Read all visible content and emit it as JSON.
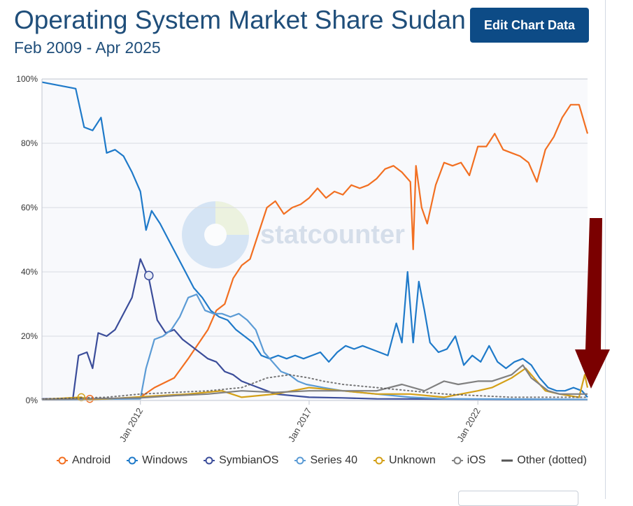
{
  "header": {
    "title": "Operating System Market Share Sudan",
    "subtitle": "Feb 2009 - Apr 2025",
    "edit_button_label": "Edit Chart Data"
  },
  "watermark": {
    "text": "statcounter"
  },
  "chart_data": {
    "type": "line",
    "title": "Operating System Market Share Sudan",
    "subtitle": "Feb 2009 - Apr 2025",
    "x_range": [
      "2009-02",
      "2025-04"
    ],
    "ylim": [
      0,
      100
    ],
    "y_ticks": [
      "0%",
      "20%",
      "40%",
      "60%",
      "80%",
      "100%"
    ],
    "x_ticks": [
      "Jan 2012",
      "Jan 2017",
      "Jan 2022"
    ],
    "grid": true,
    "legend_position": "bottom",
    "series": [
      {
        "name": "Android",
        "color": "#f26f21",
        "dashed": false,
        "points": [
          [
            "2009-02",
            0.3
          ],
          [
            "2011-01",
            0.5
          ],
          [
            "2012-01",
            1
          ],
          [
            "2012-06",
            4
          ],
          [
            "2013-01",
            7
          ],
          [
            "2013-06",
            13
          ],
          [
            "2014-01",
            22
          ],
          [
            "2014-04",
            28
          ],
          [
            "2014-07",
            30
          ],
          [
            "2014-10",
            38
          ],
          [
            "2015-01",
            42
          ],
          [
            "2015-04",
            44
          ],
          [
            "2015-10",
            60
          ],
          [
            "2016-01",
            62
          ],
          [
            "2016-04",
            58
          ],
          [
            "2016-07",
            60
          ],
          [
            "2016-10",
            61
          ],
          [
            "2017-01",
            63
          ],
          [
            "2017-04",
            66
          ],
          [
            "2017-07",
            63
          ],
          [
            "2017-10",
            65
          ],
          [
            "2018-01",
            64
          ],
          [
            "2018-04",
            67
          ],
          [
            "2018-07",
            66
          ],
          [
            "2018-10",
            67
          ],
          [
            "2019-01",
            69
          ],
          [
            "2019-04",
            72
          ],
          [
            "2019-07",
            73
          ],
          [
            "2019-10",
            71
          ],
          [
            "2020-01",
            68
          ],
          [
            "2020-02",
            47
          ],
          [
            "2020-03",
            73
          ],
          [
            "2020-05",
            60
          ],
          [
            "2020-07",
            55
          ],
          [
            "2020-10",
            67
          ],
          [
            "2021-01",
            74
          ],
          [
            "2021-04",
            73
          ],
          [
            "2021-07",
            74
          ],
          [
            "2021-10",
            70
          ],
          [
            "2022-01",
            79
          ],
          [
            "2022-04",
            79
          ],
          [
            "2022-07",
            83
          ],
          [
            "2022-10",
            78
          ],
          [
            "2023-01",
            77
          ],
          [
            "2023-04",
            76
          ],
          [
            "2023-07",
            74
          ],
          [
            "2023-10",
            68
          ],
          [
            "2024-01",
            78
          ],
          [
            "2024-04",
            82
          ],
          [
            "2024-07",
            88
          ],
          [
            "2024-10",
            92
          ],
          [
            "2025-01",
            92
          ],
          [
            "2025-04",
            83
          ]
        ]
      },
      {
        "name": "Windows",
        "color": "#1f7ac9",
        "dashed": false,
        "points": [
          [
            "2009-02",
            99
          ],
          [
            "2009-08",
            98
          ],
          [
            "2010-02",
            97
          ],
          [
            "2010-05",
            85
          ],
          [
            "2010-08",
            84
          ],
          [
            "2010-11",
            88
          ],
          [
            "2011-01",
            77
          ],
          [
            "2011-04",
            78
          ],
          [
            "2011-07",
            76
          ],
          [
            "2011-10",
            71
          ],
          [
            "2012-01",
            65
          ],
          [
            "2012-03",
            53
          ],
          [
            "2012-05",
            59
          ],
          [
            "2012-08",
            55
          ],
          [
            "2012-11",
            50
          ],
          [
            "2013-02",
            45
          ],
          [
            "2013-05",
            40
          ],
          [
            "2013-08",
            35
          ],
          [
            "2013-11",
            32
          ],
          [
            "2014-02",
            28
          ],
          [
            "2014-05",
            26
          ],
          [
            "2014-08",
            25
          ],
          [
            "2014-11",
            22
          ],
          [
            "2015-02",
            20
          ],
          [
            "2015-05",
            18
          ],
          [
            "2015-08",
            14
          ],
          [
            "2015-11",
            13
          ],
          [
            "2016-02",
            14
          ],
          [
            "2016-05",
            13
          ],
          [
            "2016-08",
            14
          ],
          [
            "2016-11",
            13
          ],
          [
            "2017-02",
            14
          ],
          [
            "2017-05",
            15
          ],
          [
            "2017-08",
            12
          ],
          [
            "2017-11",
            15
          ],
          [
            "2018-02",
            17
          ],
          [
            "2018-05",
            16
          ],
          [
            "2018-08",
            17
          ],
          [
            "2018-11",
            16
          ],
          [
            "2019-02",
            15
          ],
          [
            "2019-05",
            14
          ],
          [
            "2019-08",
            24
          ],
          [
            "2019-10",
            18
          ],
          [
            "2019-12",
            40
          ],
          [
            "2020-02",
            18
          ],
          [
            "2020-04",
            37
          ],
          [
            "2020-06",
            28
          ],
          [
            "2020-08",
            18
          ],
          [
            "2020-11",
            15
          ],
          [
            "2021-02",
            16
          ],
          [
            "2021-05",
            20
          ],
          [
            "2021-08",
            11
          ],
          [
            "2021-11",
            14
          ],
          [
            "2022-02",
            12
          ],
          [
            "2022-05",
            17
          ],
          [
            "2022-08",
            12
          ],
          [
            "2022-11",
            10
          ],
          [
            "2023-02",
            12
          ],
          [
            "2023-05",
            13
          ],
          [
            "2023-08",
            11
          ],
          [
            "2023-11",
            7
          ],
          [
            "2024-02",
            4
          ],
          [
            "2024-05",
            3
          ],
          [
            "2024-08",
            3
          ],
          [
            "2024-11",
            4
          ],
          [
            "2025-02",
            3
          ],
          [
            "2025-04",
            1
          ]
        ]
      },
      {
        "name": "SymbianOS",
        "color": "#3b4d9a",
        "dashed": false,
        "points": [
          [
            "2009-02",
            0.5
          ],
          [
            "2010-01",
            0.5
          ],
          [
            "2010-03",
            14
          ],
          [
            "2010-06",
            15
          ],
          [
            "2010-08",
            10
          ],
          [
            "2010-10",
            21
          ],
          [
            "2011-01",
            20
          ],
          [
            "2011-04",
            22
          ],
          [
            "2011-07",
            27
          ],
          [
            "2011-10",
            32
          ],
          [
            "2012-01",
            44
          ],
          [
            "2012-04",
            38
          ],
          [
            "2012-07",
            25
          ],
          [
            "2012-10",
            21
          ],
          [
            "2013-01",
            22
          ],
          [
            "2013-04",
            19
          ],
          [
            "2013-07",
            17
          ],
          [
            "2013-10",
            15
          ],
          [
            "2014-01",
            13
          ],
          [
            "2014-04",
            12
          ],
          [
            "2014-07",
            9
          ],
          [
            "2014-10",
            8
          ],
          [
            "2015-01",
            6
          ],
          [
            "2015-04",
            5
          ],
          [
            "2015-07",
            4
          ],
          [
            "2015-10",
            3
          ],
          [
            "2016-01",
            2
          ],
          [
            "2017-01",
            1
          ],
          [
            "2018-01",
            0.8
          ],
          [
            "2019-01",
            0.5
          ],
          [
            "2025-04",
            0.3
          ]
        ]
      },
      {
        "name": "Series 40",
        "color": "#5b9bd5",
        "dashed": false,
        "points": [
          [
            "2009-02",
            0.3
          ],
          [
            "2012-01",
            0.5
          ],
          [
            "2012-03",
            10
          ],
          [
            "2012-06",
            19
          ],
          [
            "2012-09",
            20
          ],
          [
            "2012-12",
            22
          ],
          [
            "2013-03",
            26
          ],
          [
            "2013-06",
            32
          ],
          [
            "2013-09",
            33
          ],
          [
            "2013-12",
            28
          ],
          [
            "2014-03",
            27
          ],
          [
            "2014-06",
            27
          ],
          [
            "2014-09",
            26
          ],
          [
            "2014-12",
            27
          ],
          [
            "2015-03",
            25
          ],
          [
            "2015-06",
            22
          ],
          [
            "2015-09",
            15
          ],
          [
            "2015-12",
            12
          ],
          [
            "2016-03",
            9
          ],
          [
            "2016-06",
            8
          ],
          [
            "2016-09",
            6
          ],
          [
            "2016-12",
            5
          ],
          [
            "2017-06",
            4
          ],
          [
            "2018-01",
            3
          ],
          [
            "2019-01",
            2
          ],
          [
            "2020-01",
            1
          ],
          [
            "2021-01",
            0.5
          ],
          [
            "2025-04",
            0.3
          ]
        ]
      },
      {
        "name": "Unknown",
        "color": "#d4a017",
        "dashed": false,
        "points": [
          [
            "2009-02",
            0.3
          ],
          [
            "2010-04",
            1
          ],
          [
            "2010-06",
            0.3
          ],
          [
            "2011-01",
            0.5
          ],
          [
            "2013-06",
            2
          ],
          [
            "2014-06",
            3
          ],
          [
            "2015-01",
            1
          ],
          [
            "2016-01",
            2
          ],
          [
            "2017-01",
            4
          ],
          [
            "2018-01",
            3
          ],
          [
            "2019-01",
            2
          ],
          [
            "2020-01",
            2
          ],
          [
            "2021-01",
            1
          ],
          [
            "2022-01",
            3
          ],
          [
            "2022-06",
            4
          ],
          [
            "2023-01",
            7
          ],
          [
            "2023-06",
            10
          ],
          [
            "2024-01",
            3
          ],
          [
            "2024-06",
            2
          ],
          [
            "2025-01",
            1
          ],
          [
            "2025-03",
            8
          ],
          [
            "2025-04",
            4
          ]
        ]
      },
      {
        "name": "iOS",
        "color": "#808080",
        "dashed": false,
        "points": [
          [
            "2009-02",
            0.3
          ],
          [
            "2012-01",
            0.8
          ],
          [
            "2013-01",
            1.5
          ],
          [
            "2014-01",
            2
          ],
          [
            "2015-01",
            3
          ],
          [
            "2016-01",
            2.5
          ],
          [
            "2017-01",
            3
          ],
          [
            "2018-01",
            3
          ],
          [
            "2019-01",
            3
          ],
          [
            "2019-10",
            5
          ],
          [
            "2020-06",
            3
          ],
          [
            "2021-01",
            6
          ],
          [
            "2021-06",
            5
          ],
          [
            "2022-01",
            6
          ],
          [
            "2022-06",
            6
          ],
          [
            "2023-01",
            8
          ],
          [
            "2023-05",
            11
          ],
          [
            "2023-08",
            7
          ],
          [
            "2023-11",
            5
          ],
          [
            "2024-02",
            3
          ],
          [
            "2024-06",
            2
          ],
          [
            "2025-01",
            2
          ],
          [
            "2025-04",
            2
          ]
        ]
      },
      {
        "name": "Other (dotted)",
        "color": "#555555",
        "dashed": true,
        "points": [
          [
            "2009-02",
            0.5
          ],
          [
            "2011-01",
            1
          ],
          [
            "2012-01",
            2
          ],
          [
            "2013-01",
            2.5
          ],
          [
            "2014-01",
            3
          ],
          [
            "2015-01",
            4
          ],
          [
            "2015-10",
            7
          ],
          [
            "2016-06",
            8
          ],
          [
            "2017-01",
            7
          ],
          [
            "2017-06",
            6
          ],
          [
            "2018-01",
            5
          ],
          [
            "2019-01",
            4
          ],
          [
            "2020-01",
            3
          ],
          [
            "2021-01",
            2
          ],
          [
            "2022-01",
            1.5
          ],
          [
            "2023-01",
            1
          ],
          [
            "2024-01",
            1
          ],
          [
            "2025-04",
            1
          ]
        ]
      }
    ]
  },
  "annotation": {
    "type": "arrow",
    "color": "#7a0000",
    "direction": "down"
  }
}
